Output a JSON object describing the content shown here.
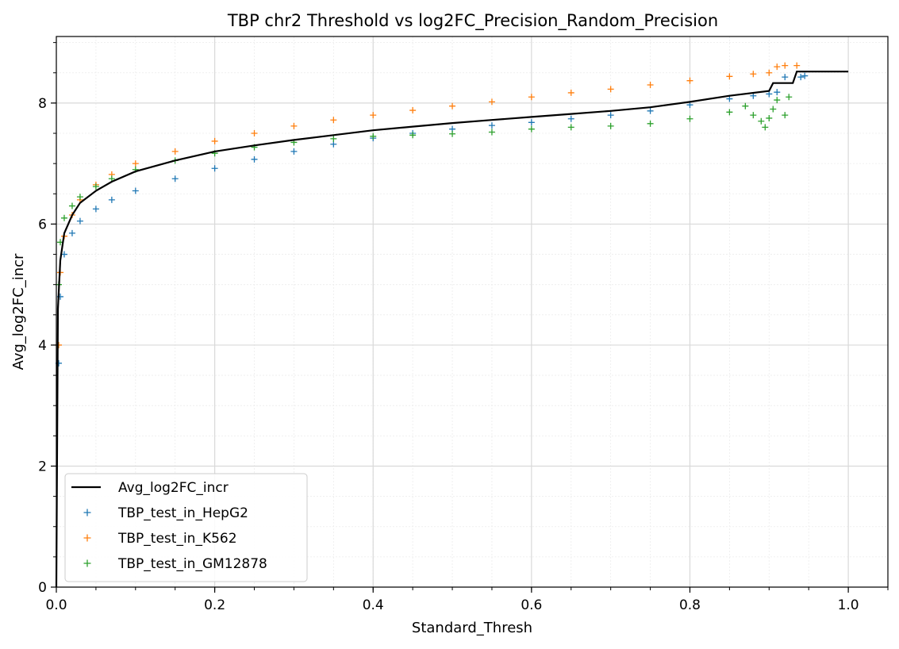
{
  "chart_data": {
    "type": "line",
    "title": "TBP chr2 Threshold vs log2FC_Precision_Random_Precision",
    "xlabel": "Standard_Thresh",
    "ylabel": "Avg_log2FC_incr",
    "xlim": [
      0.0,
      1.05
    ],
    "ylim": [
      0,
      9.1
    ],
    "xticks": [
      0.0,
      0.2,
      0.4,
      0.6,
      0.8,
      1.0
    ],
    "xtick_labels": [
      "0.0",
      "0.2",
      "0.4",
      "0.6",
      "0.8",
      "1.0"
    ],
    "yticks": [
      0,
      2,
      4,
      6,
      8
    ],
    "ytick_labels": [
      "0",
      "2",
      "4",
      "6",
      "8"
    ],
    "x_minor_step": 0.05,
    "y_minor_step": 0.5,
    "grid": true,
    "legend_position": "lower-left",
    "series": [
      {
        "name": "Avg_log2FC_incr",
        "style": "line",
        "color": "#000000",
        "x": [
          0.0,
          0.002,
          0.005,
          0.01,
          0.02,
          0.03,
          0.05,
          0.07,
          0.1,
          0.15,
          0.2,
          0.25,
          0.3,
          0.35,
          0.4,
          0.45,
          0.5,
          0.55,
          0.6,
          0.65,
          0.7,
          0.75,
          0.8,
          0.85,
          0.9,
          0.905,
          0.93,
          0.935,
          1.0
        ],
        "y": [
          0.0,
          4.6,
          5.4,
          5.85,
          6.15,
          6.35,
          6.55,
          6.7,
          6.87,
          7.05,
          7.2,
          7.3,
          7.39,
          7.47,
          7.55,
          7.61,
          7.67,
          7.72,
          7.77,
          7.82,
          7.87,
          7.93,
          8.02,
          8.12,
          8.2,
          8.33,
          8.33,
          8.52,
          8.52
        ]
      },
      {
        "name": "TBP_test_in_HepG2",
        "style": "marker",
        "marker": "+",
        "color": "#1f77b4",
        "x": [
          0.003,
          0.005,
          0.01,
          0.02,
          0.03,
          0.05,
          0.07,
          0.1,
          0.15,
          0.2,
          0.25,
          0.3,
          0.35,
          0.4,
          0.45,
          0.5,
          0.55,
          0.6,
          0.65,
          0.7,
          0.75,
          0.8,
          0.85,
          0.88,
          0.9,
          0.91,
          0.92,
          0.94,
          0.945
        ],
        "y": [
          3.7,
          4.8,
          5.5,
          5.85,
          6.05,
          6.25,
          6.4,
          6.55,
          6.75,
          6.92,
          7.07,
          7.2,
          7.32,
          7.42,
          7.5,
          7.57,
          7.63,
          7.68,
          7.74,
          7.8,
          7.87,
          7.97,
          8.07,
          8.12,
          8.15,
          8.18,
          8.43,
          8.43,
          8.45
        ]
      },
      {
        "name": "TBP_test_in_K562",
        "style": "marker",
        "marker": "+",
        "color": "#ff7f0e",
        "x": [
          0.003,
          0.005,
          0.01,
          0.02,
          0.03,
          0.05,
          0.07,
          0.1,
          0.15,
          0.2,
          0.25,
          0.3,
          0.35,
          0.4,
          0.45,
          0.5,
          0.55,
          0.6,
          0.65,
          0.7,
          0.75,
          0.8,
          0.85,
          0.88,
          0.9,
          0.91,
          0.92,
          0.935
        ],
        "y": [
          4.0,
          5.2,
          5.8,
          6.15,
          6.4,
          6.65,
          6.82,
          7.0,
          7.2,
          7.37,
          7.5,
          7.62,
          7.72,
          7.8,
          7.88,
          7.95,
          8.02,
          8.1,
          8.17,
          8.23,
          8.3,
          8.37,
          8.44,
          8.48,
          8.5,
          8.6,
          8.62,
          8.62
        ]
      },
      {
        "name": "TBP_test_in_GM12878",
        "style": "marker",
        "marker": "+",
        "color": "#2ca02c",
        "x": [
          0.003,
          0.005,
          0.01,
          0.02,
          0.03,
          0.05,
          0.07,
          0.1,
          0.15,
          0.2,
          0.25,
          0.3,
          0.35,
          0.4,
          0.45,
          0.5,
          0.55,
          0.6,
          0.65,
          0.7,
          0.75,
          0.8,
          0.85,
          0.87,
          0.88,
          0.89,
          0.895,
          0.9,
          0.905,
          0.91,
          0.92,
          0.925
        ],
        "y": [
          5.0,
          5.7,
          6.1,
          6.3,
          6.45,
          6.62,
          6.75,
          6.9,
          7.05,
          7.17,
          7.27,
          7.35,
          7.41,
          7.45,
          7.47,
          7.49,
          7.52,
          7.57,
          7.6,
          7.62,
          7.66,
          7.74,
          7.85,
          7.95,
          7.8,
          7.7,
          7.6,
          7.75,
          7.9,
          8.05,
          7.8,
          8.1
        ]
      }
    ]
  }
}
